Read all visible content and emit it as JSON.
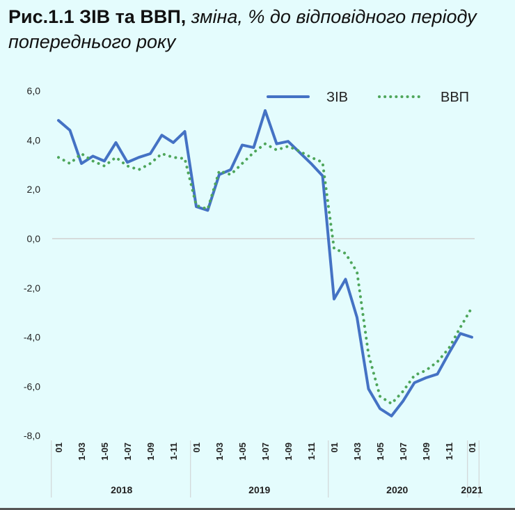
{
  "title": {
    "bold": "Рис.1.1 ЗІВ та ВВП,",
    "italic": "зміна, % до відповідного періоду попереднього року"
  },
  "chart_data": {
    "type": "line",
    "title": "Рис.1.1 ЗІВ та ВВП, зміна, % до відповідного періоду попереднього року",
    "xlabel": "",
    "ylabel": "",
    "ylim": [
      -8,
      6
    ],
    "y_ticks": [
      "6,0",
      "4,0",
      "2,0",
      "0,0",
      "-2,0",
      "-4,0",
      "-6,0",
      "-8,0"
    ],
    "y_tick_values": [
      6,
      4,
      2,
      0,
      -2,
      -4,
      -6,
      -8
    ],
    "x_tick_labels": [
      "01",
      "1-03",
      "1-05",
      "1-07",
      "1-09",
      "1-11",
      "01",
      "1-03",
      "1-05",
      "1-07",
      "1-09",
      "1-11",
      "01",
      "1-03",
      "1-05",
      "1-07",
      "1-09",
      "1-11",
      "01"
    ],
    "x_tick_months": [
      0,
      2,
      4,
      6,
      8,
      10,
      12,
      14,
      16,
      18,
      20,
      22,
      24,
      26,
      28,
      30,
      32,
      34,
      36
    ],
    "year_groups": [
      {
        "label": "2018",
        "start": 0,
        "end": 11
      },
      {
        "label": "2019",
        "start": 12,
        "end": 23
      },
      {
        "label": "2020",
        "start": 24,
        "end": 35
      },
      {
        "label": "2021",
        "start": 36,
        "end": 36
      }
    ],
    "x": [
      "2018-01",
      "2018-02",
      "2018-03",
      "2018-04",
      "2018-05",
      "2018-06",
      "2018-07",
      "2018-08",
      "2018-09",
      "2018-10",
      "2018-11",
      "2018-12",
      "2019-01",
      "2019-02",
      "2019-03",
      "2019-04",
      "2019-05",
      "2019-06",
      "2019-07",
      "2019-08",
      "2019-09",
      "2019-10",
      "2019-11",
      "2019-12",
      "2020-01",
      "2020-02",
      "2020-03",
      "2020-04",
      "2020-05",
      "2020-06",
      "2020-07",
      "2020-08",
      "2020-09",
      "2020-10",
      "2020-11",
      "2020-12",
      "2021-01"
    ],
    "series": [
      {
        "name": "ЗІВ",
        "color": "#4472c4",
        "style": "solid",
        "values": [
          4.8,
          4.4,
          3.05,
          3.35,
          3.15,
          3.9,
          3.1,
          3.3,
          3.45,
          4.2,
          3.9,
          4.35,
          1.3,
          1.15,
          2.6,
          2.8,
          3.8,
          3.7,
          5.2,
          3.85,
          3.95,
          3.5,
          3.05,
          2.55,
          -2.45,
          -1.65,
          -3.2,
          -6.1,
          -6.9,
          -7.2,
          -6.6,
          -5.85,
          -5.65,
          -5.5,
          -4.65,
          -3.85,
          -4.0
        ]
      },
      {
        "name": "ВВП",
        "color": "#4ea65b",
        "style": "dotted",
        "values": [
          3.3,
          3.05,
          3.45,
          3.15,
          2.95,
          3.3,
          2.95,
          2.8,
          3.05,
          3.45,
          3.3,
          3.25,
          1.35,
          1.2,
          2.75,
          2.6,
          3.05,
          3.5,
          3.85,
          3.6,
          3.75,
          3.55,
          3.3,
          3.1,
          -0.4,
          -0.6,
          -1.35,
          -4.7,
          -6.4,
          -6.7,
          -6.2,
          -5.55,
          -5.35,
          -5.0,
          -4.45,
          -3.6,
          -2.8
        ]
      }
    ],
    "grid": "zero line only",
    "legend": "top-right"
  }
}
